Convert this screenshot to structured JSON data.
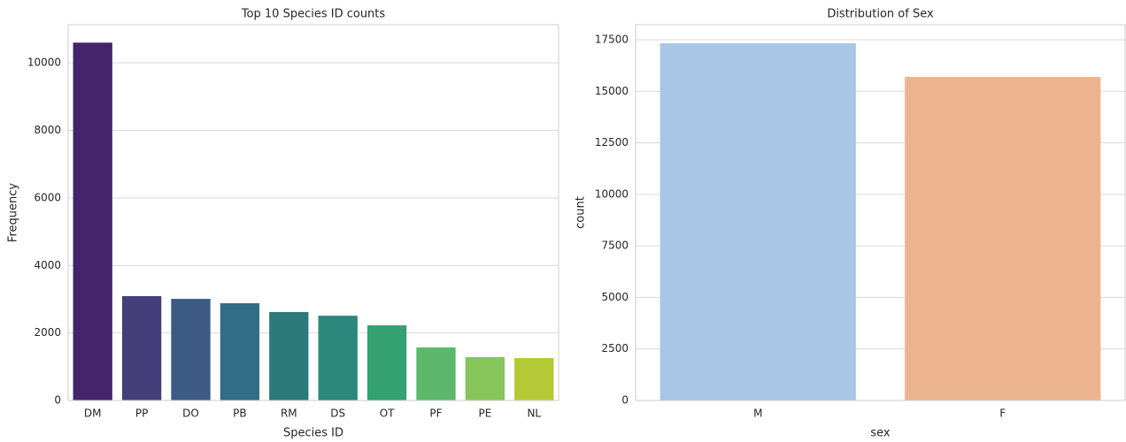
{
  "chart_data": [
    {
      "type": "bar",
      "title": "Top 10 Species ID counts",
      "xlabel": "Species ID",
      "ylabel": "Frequency",
      "categories": [
        "DM",
        "PP",
        "DO",
        "PB",
        "RM",
        "DS",
        "OT",
        "PF",
        "PE",
        "NL"
      ],
      "values": [
        10600,
        3090,
        3010,
        2880,
        2620,
        2510,
        2225,
        1570,
        1285,
        1255
      ],
      "colors": [
        "#45246b",
        "#443f7a",
        "#3d5a85",
        "#316e86",
        "#2c7a7c",
        "#2a887c",
        "#35a072",
        "#5cb96b",
        "#86c55a",
        "#b3c935"
      ],
      "ylim": [
        0,
        11130
      ],
      "yticks": [
        0,
        2000,
        4000,
        6000,
        8000,
        10000
      ],
      "grid": true
    },
    {
      "type": "bar",
      "title": "Distribution of Sex",
      "xlabel": "sex",
      "ylabel": "count",
      "categories": [
        "M",
        "F"
      ],
      "values": [
        17330,
        15700
      ],
      "colors": [
        "#a9c6e6",
        "#ebb48f"
      ],
      "ylim": [
        0,
        18230
      ],
      "yticks": [
        0,
        2500,
        5000,
        7500,
        10000,
        12500,
        15000,
        17500
      ],
      "grid": true
    }
  ]
}
